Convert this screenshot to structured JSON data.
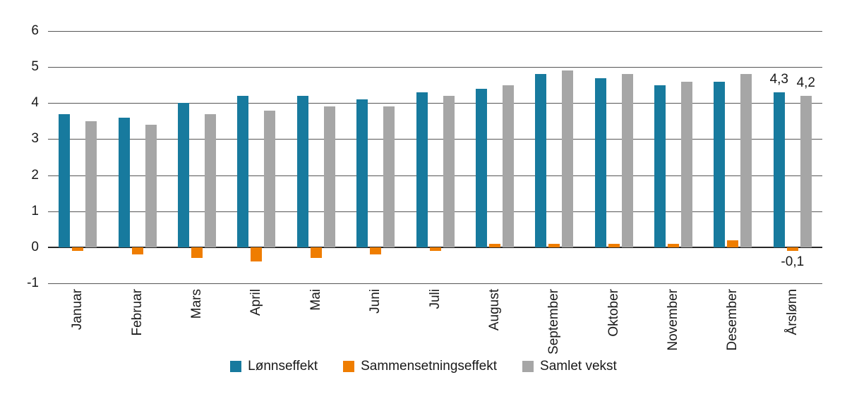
{
  "chart_data": {
    "type": "bar",
    "categories": [
      "Januar",
      "Februar",
      "Mars",
      "April",
      "Mai",
      "Juni",
      "Juli",
      "August",
      "September",
      "Oktober",
      "November",
      "Desember",
      "Årslønn"
    ],
    "series": [
      {
        "name": "Lønnseffekt",
        "color": "#177a9e",
        "values": [
          3.7,
          3.6,
          4.0,
          4.2,
          4.2,
          4.1,
          4.3,
          4.4,
          4.8,
          4.7,
          4.5,
          4.6,
          4.3
        ]
      },
      {
        "name": "Sammensetningseffekt",
        "color": "#ef7d00",
        "values": [
          -0.1,
          -0.2,
          -0.3,
          -0.4,
          -0.3,
          -0.2,
          -0.1,
          0.1,
          0.1,
          0.1,
          0.1,
          0.2,
          -0.1
        ]
      },
      {
        "name": "Samlet vekst",
        "color": "#a6a6a6",
        "values": [
          3.5,
          3.4,
          3.7,
          3.8,
          3.9,
          3.9,
          4.2,
          4.5,
          4.9,
          4.8,
          4.6,
          4.8,
          4.2
        ]
      }
    ],
    "title": "",
    "xlabel": "",
    "ylabel": "",
    "ylim": [
      -1,
      6
    ],
    "ytick_step": 1,
    "ytick_labels": [
      "6",
      "5",
      "4",
      "3",
      "2",
      "1",
      "0",
      "-1"
    ],
    "grid": true,
    "legend_position": "bottom",
    "annotations": [
      {
        "category": "Årslønn",
        "series": "Lønnseffekt",
        "text": "4,3",
        "position": "above"
      },
      {
        "category": "Årslønn",
        "series": "Samlet vekst",
        "text": "4,2",
        "position": "above"
      },
      {
        "category": "Årslønn",
        "series": "Sammensetningseffekt",
        "text": "-0,1",
        "position": "below"
      }
    ]
  },
  "colors": {
    "background": "#ffffff",
    "gridline": "#565656",
    "zero_line": "#262626",
    "text": "#1a1a1a"
  }
}
